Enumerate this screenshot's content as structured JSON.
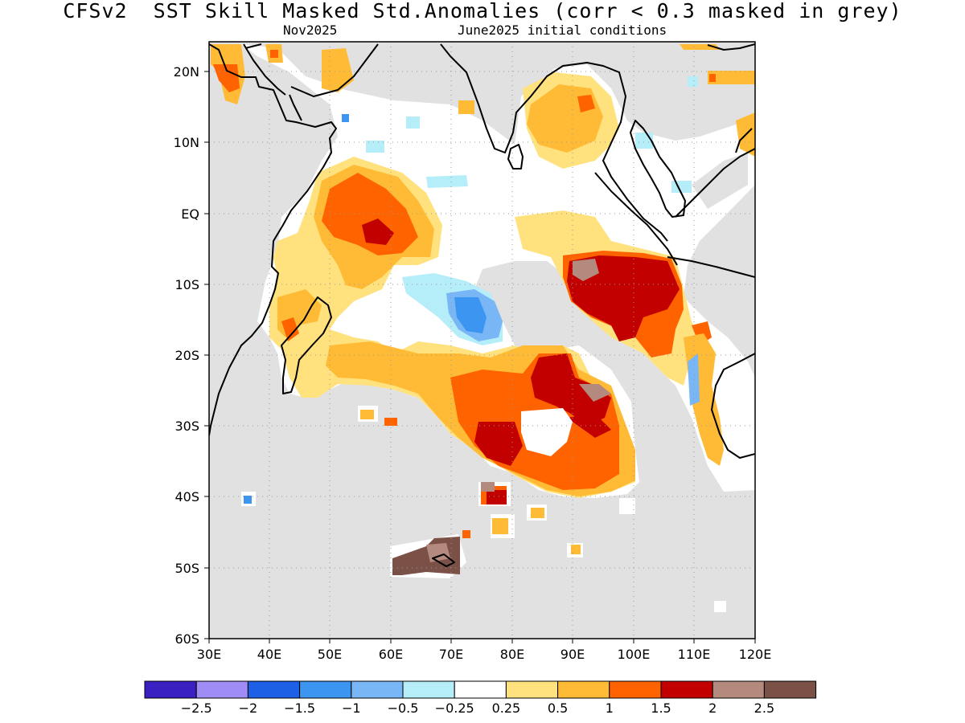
{
  "header": {
    "title": "CFSv2  SST Skill Masked Std.Anomalies (corr < 0.3 masked in grey)",
    "target_month": "Nov2025",
    "init_conditions": "June2025 initial conditions"
  },
  "map": {
    "lat_ticks": [
      "20N",
      "10N",
      "EQ",
      "10S",
      "20S",
      "30S",
      "40S",
      "50S",
      "60S"
    ],
    "lon_ticks": [
      "30E",
      "40E",
      "50E",
      "60E",
      "70E",
      "80E",
      "90E",
      "100E",
      "110E",
      "120E"
    ],
    "mask_color": "#e1e1e1",
    "ocean_color": "#ffffff"
  },
  "colorbar": {
    "colors": [
      "#3a1fc1",
      "#a08cf5",
      "#1d60e6",
      "#3c95f0",
      "#78b6f6",
      "#b5eef9",
      "#ffffff",
      "#ffe17e",
      "#ffbb35",
      "#ff6300",
      "#c30000",
      "#b48a7e",
      "#7a5047"
    ],
    "labels": [
      "-2.5",
      "-2",
      "-1.5",
      "-1",
      "-0.5",
      "-0.25",
      "0.25",
      "0.5",
      "1",
      "1.5",
      "2",
      "2.5"
    ]
  }
}
